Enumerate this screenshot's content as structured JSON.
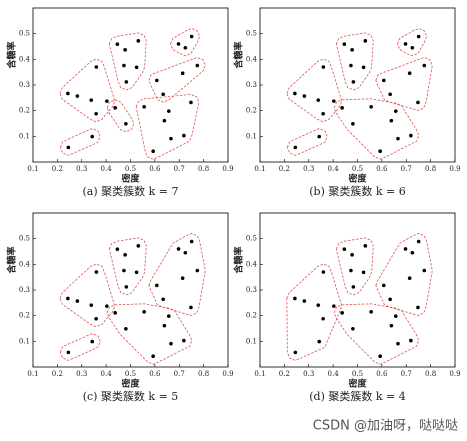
{
  "chart_data": [
    {
      "type": "scatter",
      "caption": "(a) 聚类簇数 k = 7",
      "xlabel": "密度",
      "ylabel": "含糖率",
      "xlim": [
        0.1,
        0.9
      ],
      "ylim": [
        0,
        0.6
      ],
      "xticks": [
        0.1,
        0.2,
        0.3,
        0.4,
        0.5,
        0.6,
        0.7,
        0.8,
        0.9
      ],
      "yticks": [
        0.1,
        0.2,
        0.3,
        0.4,
        0.5
      ],
      "point_color": "#000000",
      "hull_color": "#d9534f",
      "series": [
        {
          "x": [
            0.245,
            0.343
          ],
          "y": [
            0.057,
            0.099
          ]
        },
        {
          "x": [
            0.243,
            0.282,
            0.339,
            0.36,
            0.359,
            0.403
          ],
          "y": [
            0.267,
            0.257,
            0.241,
            0.37,
            0.188,
            0.237
          ]
        },
        {
          "x": [
            0.446,
            0.478,
            0.532,
            0.473,
            0.525,
            0.483
          ],
          "y": [
            0.459,
            0.437,
            0.472,
            0.376,
            0.369,
            0.312
          ]
        },
        {
          "x": [
            0.437,
            0.481
          ],
          "y": [
            0.211,
            0.149
          ]
        },
        {
          "x": [
            0.697,
            0.751,
            0.725
          ],
          "y": [
            0.46,
            0.489,
            0.445
          ]
        },
        {
          "x": [
            0.608,
            0.634,
            0.714,
            0.774
          ],
          "y": [
            0.318,
            0.264,
            0.346,
            0.376
          ]
        },
        {
          "x": [
            0.556,
            0.593,
            0.666,
            0.719,
            0.639,
            0.657,
            0.748
          ],
          "y": [
            0.215,
            0.042,
            0.091,
            0.103,
            0.161,
            0.198,
            0.232
          ]
        }
      ]
    },
    {
      "type": "scatter",
      "caption": "(b) 聚类簇数 k = 6",
      "xlabel": "密度",
      "ylabel": "含糖率",
      "xlim": [
        0.1,
        0.9
      ],
      "ylim": [
        0,
        0.6
      ],
      "xticks": [
        0.1,
        0.2,
        0.3,
        0.4,
        0.5,
        0.6,
        0.7,
        0.8,
        0.9
      ],
      "yticks": [
        0.1,
        0.2,
        0.3,
        0.4,
        0.5
      ],
      "point_color": "#000000",
      "hull_color": "#d9534f",
      "series": [
        {
          "x": [
            0.245,
            0.343
          ],
          "y": [
            0.057,
            0.099
          ]
        },
        {
          "x": [
            0.243,
            0.282,
            0.339,
            0.36,
            0.359,
            0.403
          ],
          "y": [
            0.267,
            0.257,
            0.241,
            0.37,
            0.188,
            0.237
          ]
        },
        {
          "x": [
            0.446,
            0.478,
            0.532,
            0.473,
            0.525,
            0.483
          ],
          "y": [
            0.459,
            0.437,
            0.472,
            0.376,
            0.369,
            0.312
          ]
        },
        {
          "x": [
            0.697,
            0.751,
            0.725
          ],
          "y": [
            0.46,
            0.489,
            0.445
          ]
        },
        {
          "x": [
            0.608,
            0.634,
            0.714,
            0.774,
            0.748
          ],
          "y": [
            0.318,
            0.264,
            0.346,
            0.376,
            0.232
          ]
        },
        {
          "x": [
            0.437,
            0.481,
            0.556,
            0.593,
            0.666,
            0.719,
            0.639,
            0.657
          ],
          "y": [
            0.211,
            0.149,
            0.215,
            0.042,
            0.091,
            0.103,
            0.161,
            0.198
          ]
        }
      ]
    },
    {
      "type": "scatter",
      "caption": "(c) 聚类簇数 k = 5",
      "xlabel": "密度",
      "ylabel": "含糖率",
      "xlim": [
        0.1,
        0.9
      ],
      "ylim": [
        0,
        0.6
      ],
      "xticks": [
        0.1,
        0.2,
        0.3,
        0.4,
        0.5,
        0.6,
        0.7,
        0.8,
        0.9
      ],
      "yticks": [
        0.1,
        0.2,
        0.3,
        0.4,
        0.5
      ],
      "point_color": "#000000",
      "hull_color": "#d9534f",
      "series": [
        {
          "x": [
            0.245,
            0.343
          ],
          "y": [
            0.057,
            0.099
          ]
        },
        {
          "x": [
            0.243,
            0.282,
            0.339,
            0.36,
            0.359,
            0.403
          ],
          "y": [
            0.267,
            0.257,
            0.241,
            0.37,
            0.188,
            0.237
          ]
        },
        {
          "x": [
            0.446,
            0.478,
            0.532,
            0.473,
            0.525,
            0.483
          ],
          "y": [
            0.459,
            0.437,
            0.472,
            0.376,
            0.369,
            0.312
          ]
        },
        {
          "x": [
            0.697,
            0.751,
            0.725,
            0.608,
            0.634,
            0.714,
            0.774,
            0.748
          ],
          "y": [
            0.46,
            0.489,
            0.445,
            0.318,
            0.264,
            0.346,
            0.376,
            0.232
          ]
        },
        {
          "x": [
            0.437,
            0.481,
            0.556,
            0.593,
            0.666,
            0.719,
            0.639,
            0.657
          ],
          "y": [
            0.211,
            0.149,
            0.215,
            0.042,
            0.091,
            0.103,
            0.161,
            0.198
          ]
        }
      ]
    },
    {
      "type": "scatter",
      "caption": "(d) 聚类簇数 k = 4",
      "xlabel": "密度",
      "ylabel": "含糖率",
      "xlim": [
        0.1,
        0.9
      ],
      "ylim": [
        0,
        0.6
      ],
      "xticks": [
        0.1,
        0.2,
        0.3,
        0.4,
        0.5,
        0.6,
        0.7,
        0.8,
        0.9
      ],
      "yticks": [
        0.1,
        0.2,
        0.3,
        0.4,
        0.5
      ],
      "point_color": "#000000",
      "hull_color": "#d9534f",
      "series": [
        {
          "x": [
            0.245,
            0.343,
            0.243,
            0.282,
            0.339,
            0.36,
            0.359,
            0.403
          ],
          "y": [
            0.057,
            0.099,
            0.267,
            0.257,
            0.241,
            0.37,
            0.188,
            0.237
          ]
        },
        {
          "x": [
            0.446,
            0.478,
            0.532,
            0.473,
            0.525,
            0.483
          ],
          "y": [
            0.459,
            0.437,
            0.472,
            0.376,
            0.369,
            0.312
          ]
        },
        {
          "x": [
            0.697,
            0.751,
            0.725,
            0.608,
            0.634,
            0.714,
            0.774,
            0.748
          ],
          "y": [
            0.46,
            0.489,
            0.445,
            0.318,
            0.264,
            0.346,
            0.376,
            0.232
          ]
        },
        {
          "x": [
            0.437,
            0.481,
            0.556,
            0.593,
            0.666,
            0.719,
            0.639,
            0.657
          ],
          "y": [
            0.211,
            0.149,
            0.215,
            0.042,
            0.091,
            0.103,
            0.161,
            0.198
          ]
        }
      ]
    }
  ],
  "watermark": "CSDN @加油呀，哒哒哒"
}
